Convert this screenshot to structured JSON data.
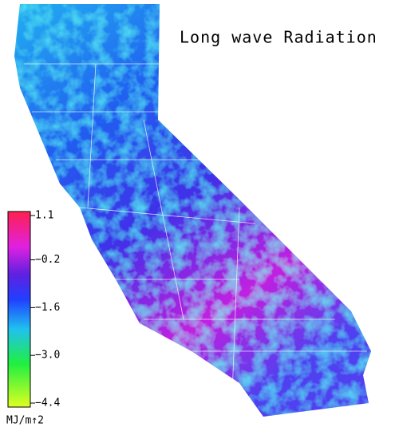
{
  "map": {
    "title": "Long wave Radiation",
    "colorbar": {
      "ticks": [
        {
          "value": 1.1,
          "label": "1.1"
        },
        {
          "value": -0.2,
          "label": "−0.2"
        },
        {
          "value": -1.6,
          "label": "−1.6"
        },
        {
          "value": -3.0,
          "label": "−3.0"
        },
        {
          "value": -4.4,
          "label": "−4.4"
        }
      ],
      "unit": "MJ/m↑2"
    }
  }
}
